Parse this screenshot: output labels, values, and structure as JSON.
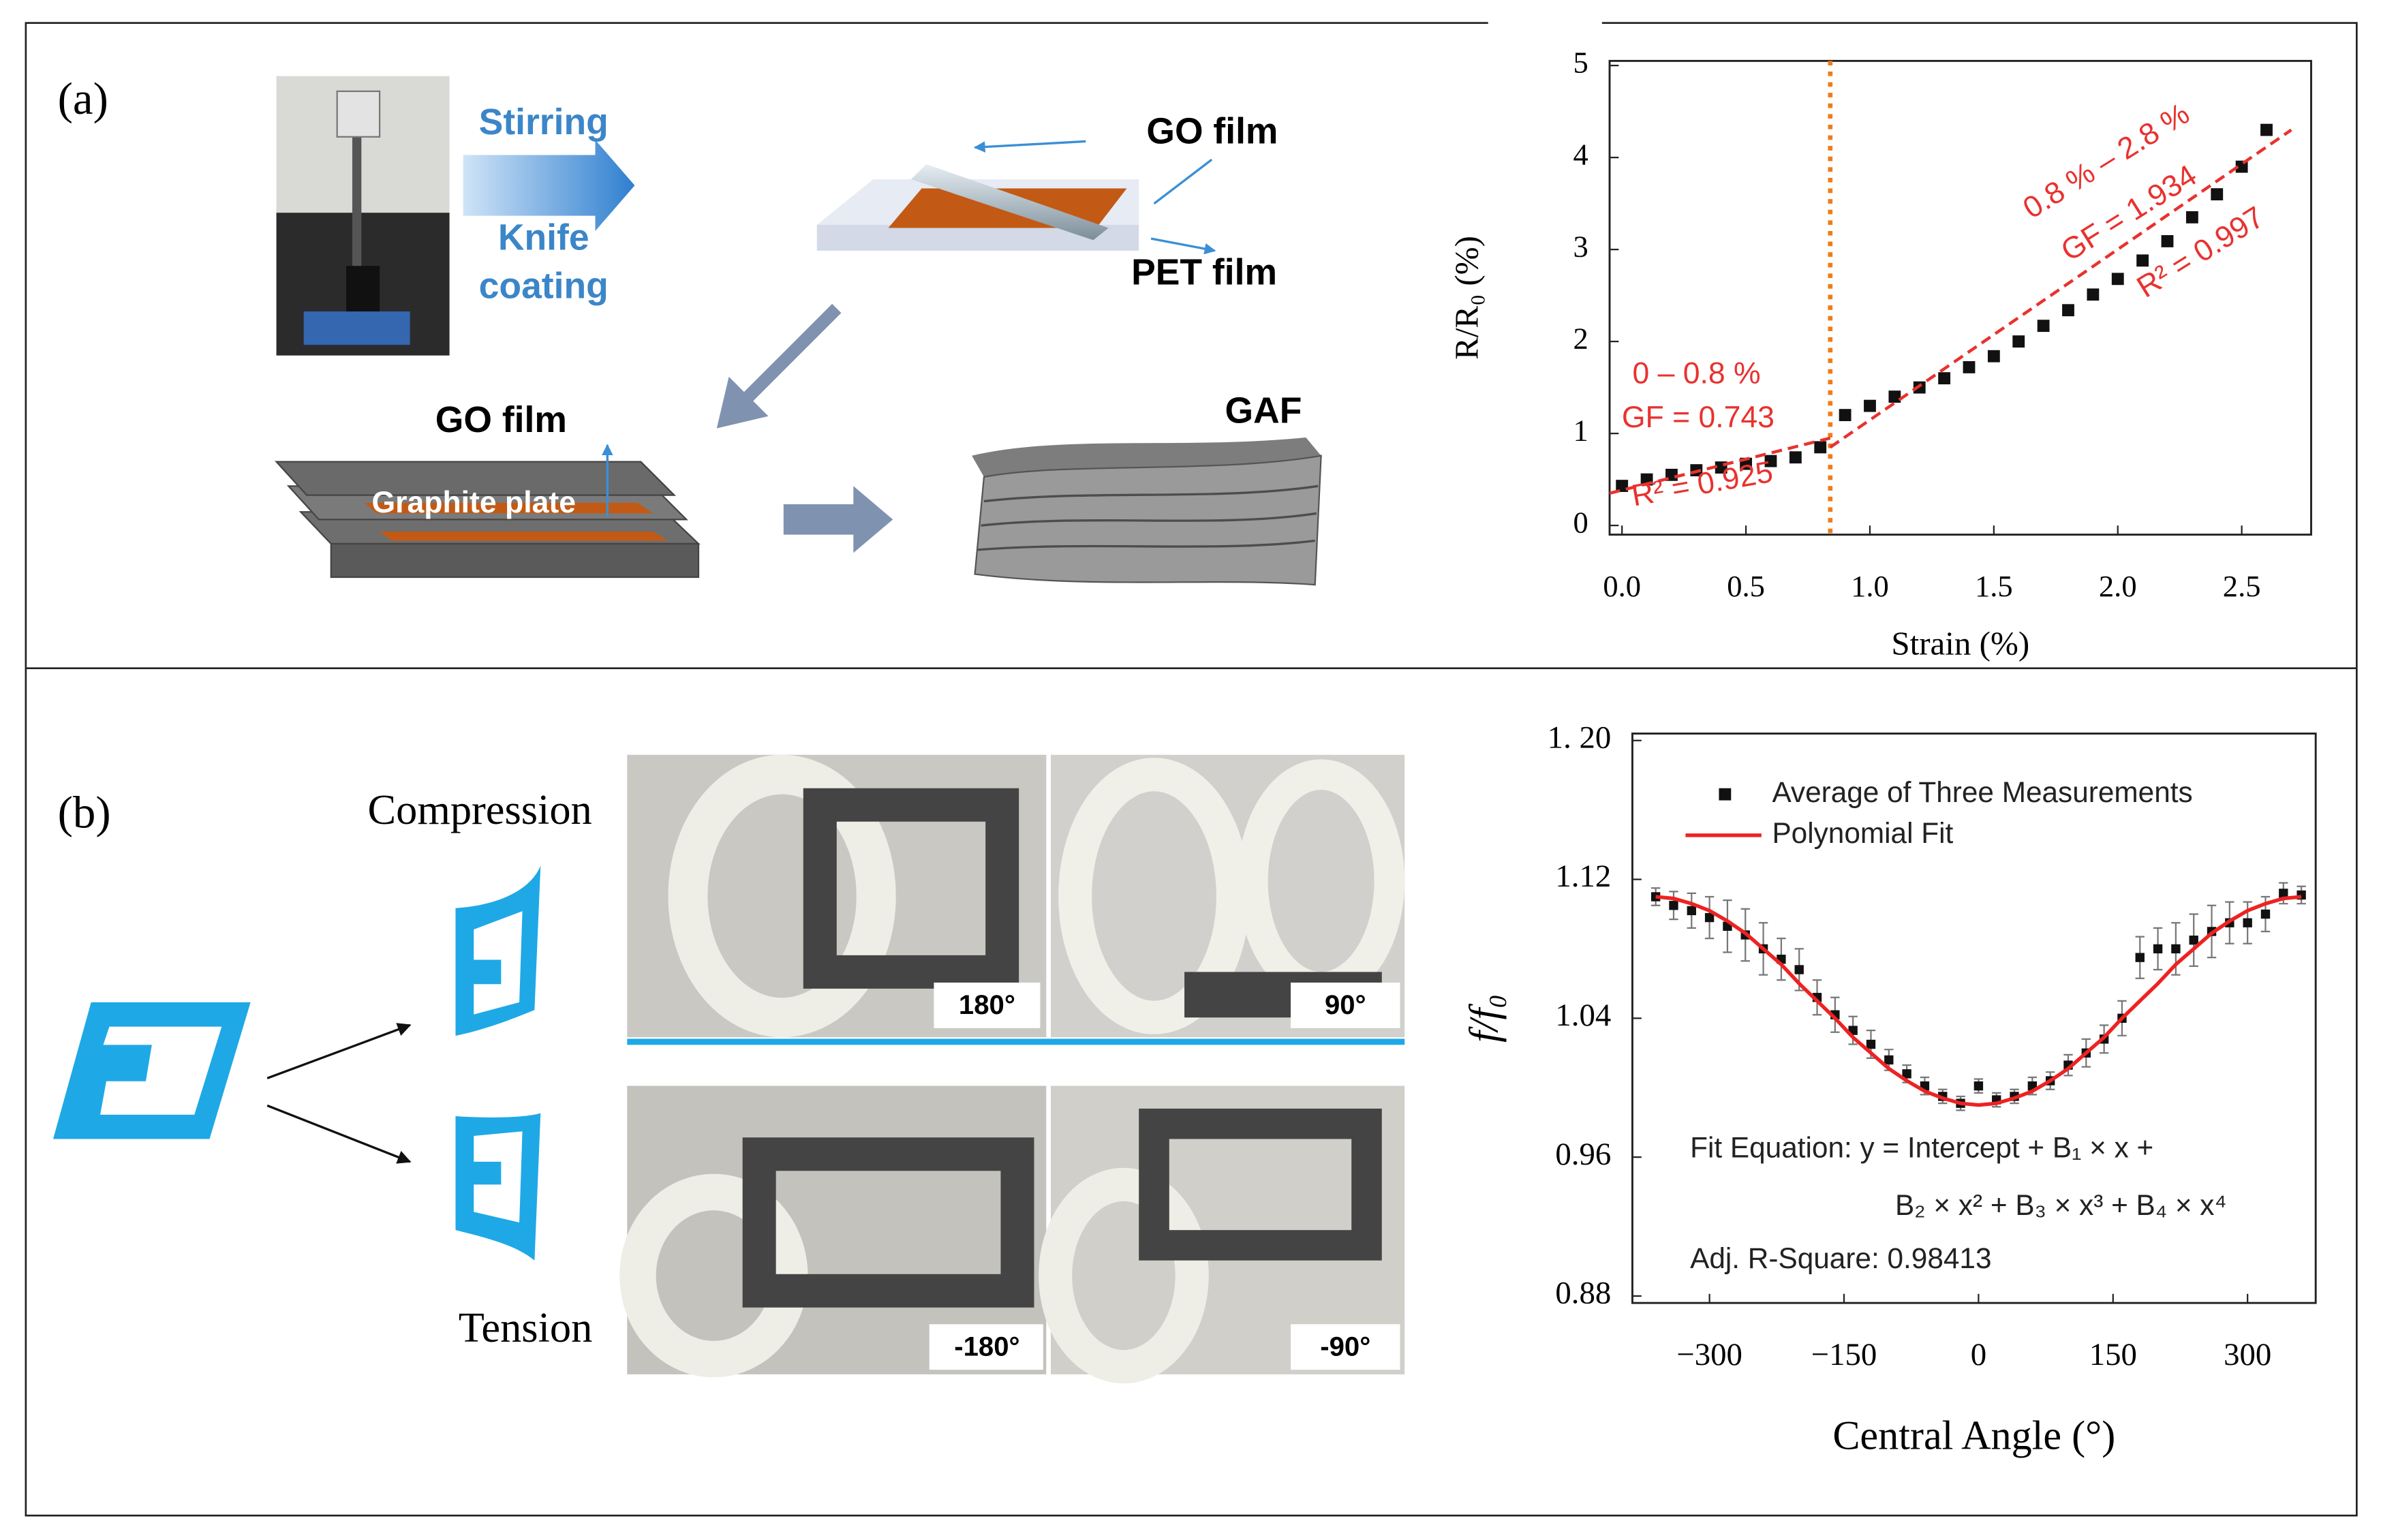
{
  "panel_a": {
    "label": "(a)",
    "stirring": "Stirring",
    "knife": "Knife",
    "coating": "coating",
    "go_film_top": "GO film",
    "pet_film": "PET film",
    "go_film_bottom": "GO film",
    "graphite_plate": "Graphite plate",
    "gaf": "GAF"
  },
  "panel_b": {
    "label": "(b)",
    "compression": "Compression",
    "tension": "Tension",
    "photo_labels": [
      "180°",
      "90°",
      "-180°",
      "-90°"
    ]
  },
  "chart_data": [
    {
      "type": "scatter",
      "xlabel": "Strain (%)",
      "ylabel": "R/R₀ (%)",
      "xlim": [
        -0.05,
        2.78
      ],
      "ylim": [
        -0.1,
        5.05
      ],
      "xticks": [
        {
          "value": 0,
          "label": "0.0"
        },
        0.5,
        {
          "value": 1,
          "label": "1.0"
        },
        1.5,
        {
          "value": 2,
          "label": "2.0"
        },
        2.5
      ],
      "yticks": [
        0,
        1,
        2,
        3,
        4,
        5
      ],
      "vline": 0.84,
      "vline_color": "#ee7d1a",
      "series": [
        {
          "mode": "markers",
          "color": "#111111",
          "x": [
            0.0,
            0.1,
            0.2,
            0.3,
            0.4,
            0.5,
            0.6,
            0.7,
            0.8,
            0.9,
            1.0,
            1.1,
            1.2,
            1.3,
            1.4,
            1.5,
            1.6,
            1.7,
            1.8,
            1.9,
            2.0,
            2.1,
            2.2,
            2.3,
            2.4,
            2.5,
            2.6
          ],
          "values": [
            0.43,
            0.5,
            0.55,
            0.6,
            0.63,
            0.67,
            0.7,
            0.74,
            0.85,
            1.2,
            1.3,
            1.4,
            1.5,
            1.6,
            1.72,
            1.84,
            2.0,
            2.17,
            2.34,
            2.51,
            2.68,
            2.88,
            3.09,
            3.35,
            3.6,
            3.9,
            4.3
          ]
        },
        {
          "mode": "lines",
          "dash": true,
          "color": "#e8322f",
          "x": [
            -0.05,
            0.84
          ],
          "values": [
            0.35,
            0.95
          ]
        },
        {
          "mode": "lines",
          "dash": true,
          "color": "#e8322f",
          "x": [
            0.84,
            2.7
          ],
          "values": [
            0.85,
            4.3
          ]
        }
      ],
      "annotations": [
        "0 – 0.8 %",
        "GF = 0.743",
        "R² = 0.925",
        "0.8 % – 2.8 %",
        "GF = 1.934",
        "R² = 0.997"
      ],
      "annotation_color": "#e8322f"
    },
    {
      "type": "scatter",
      "xlabel": "Central Angle (°)",
      "ylabel": "f/f₀",
      "xlim": [
        -386,
        376
      ],
      "ylim": [
        0.876,
        1.204
      ],
      "xticks": [
        {
          "value": -300,
          "label": "−300"
        },
        {
          "value": -150,
          "label": "−150"
        },
        0,
        150,
        300
      ],
      "yticks": [
        {
          "value": 1.2,
          "label": "1. 20"
        },
        1.12,
        1.04,
        0.96,
        0.88
      ],
      "series": [
        {
          "name": "Average of Three Measurements",
          "mode": "markers",
          "color": "#111111",
          "x": [
            -360,
            -340,
            -320,
            -300,
            -280,
            -260,
            -240,
            -220,
            -200,
            -180,
            -160,
            -140,
            -120,
            -100,
            -80,
            -60,
            -40,
            -20,
            0,
            20,
            40,
            60,
            80,
            100,
            120,
            140,
            160,
            180,
            200,
            220,
            240,
            260,
            280,
            300,
            320,
            340,
            360
          ],
          "values": [
            1.11,
            1.105,
            1.102,
            1.098,
            1.093,
            1.088,
            1.08,
            1.074,
            1.068,
            1.052,
            1.042,
            1.033,
            1.025,
            1.016,
            1.008,
            1.001,
            0.995,
            0.991,
            1.001,
            0.993,
            0.995,
            1.001,
            1.004,
            1.013,
            1.02,
            1.028,
            1.04,
            1.075,
            1.08,
            1.08,
            1.085,
            1.09,
            1.095,
            1.095,
            1.1,
            1.112,
            1.111
          ],
          "errors": [
            0.005,
            0.008,
            0.01,
            0.012,
            0.015,
            0.015,
            0.015,
            0.012,
            0.012,
            0.01,
            0.01,
            0.008,
            0.008,
            0.006,
            0.005,
            0.005,
            0.004,
            0.004,
            0.004,
            0.004,
            0.004,
            0.005,
            0.005,
            0.006,
            0.008,
            0.008,
            0.01,
            0.012,
            0.012,
            0.015,
            0.015,
            0.015,
            0.012,
            0.012,
            0.01,
            0.006,
            0.005
          ]
        },
        {
          "name": "Polynomial Fit",
          "mode": "lines",
          "color": "#ee2222",
          "x": [
            -360,
            -340,
            -320,
            -300,
            -280,
            -260,
            -240,
            -220,
            -200,
            -180,
            -160,
            -140,
            -120,
            -100,
            -80,
            -60,
            -40,
            -20,
            0,
            20,
            40,
            60,
            80,
            100,
            120,
            140,
            160,
            180,
            200,
            220,
            240,
            260,
            280,
            300,
            320,
            340,
            360
          ],
          "values": [
            1.11,
            1.109,
            1.106,
            1.102,
            1.096,
            1.089,
            1.08,
            1.071,
            1.06,
            1.05,
            1.04,
            1.029,
            1.02,
            1.011,
            1.004,
            0.998,
            0.994,
            0.991,
            0.99,
            0.991,
            0.994,
            0.998,
            1.004,
            1.011,
            1.02,
            1.029,
            1.04,
            1.05,
            1.06,
            1.071,
            1.08,
            1.089,
            1.096,
            1.102,
            1.106,
            1.109,
            1.11
          ]
        }
      ],
      "annotations": [
        "Fit Equation: y = Intercept + B₁ × x +",
        "B₂ × x² + B₃ × x³ + B₄ × x⁴",
        "Adj. R-Square: 0.98413"
      ],
      "annotation_color": "#222222"
    }
  ]
}
